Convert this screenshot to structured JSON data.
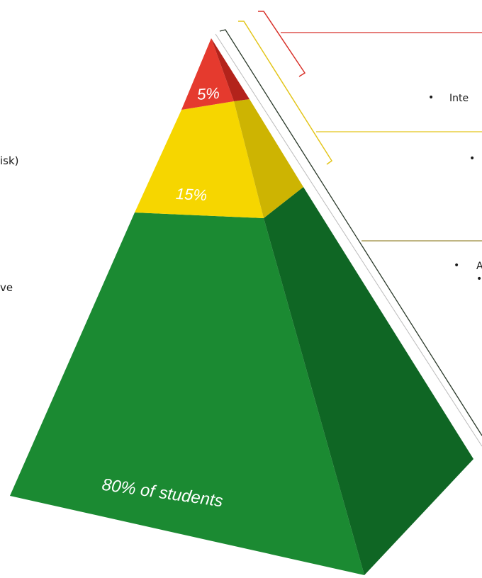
{
  "tiers": {
    "top": {
      "label": "5%",
      "front_color": "#e53a2e",
      "side_color": "#b3231b"
    },
    "middle": {
      "label": "15%",
      "front_color": "#f6d600",
      "side_color": "#cdb402"
    },
    "base": {
      "label": "80% of students",
      "front_color": "#1b8a32",
      "side_color": "#0f6624"
    }
  },
  "left_text": {
    "line_1": "isk)",
    "line_2": "ve"
  },
  "right_text": {
    "top_bullet_label": "Inte",
    "middle_bullet_label": "",
    "bottom_bullet_label": "A"
  },
  "bracket_colors": {
    "red": "#d8322a",
    "yellow": "#e3c51a",
    "dark": "#2b3a2b"
  }
}
